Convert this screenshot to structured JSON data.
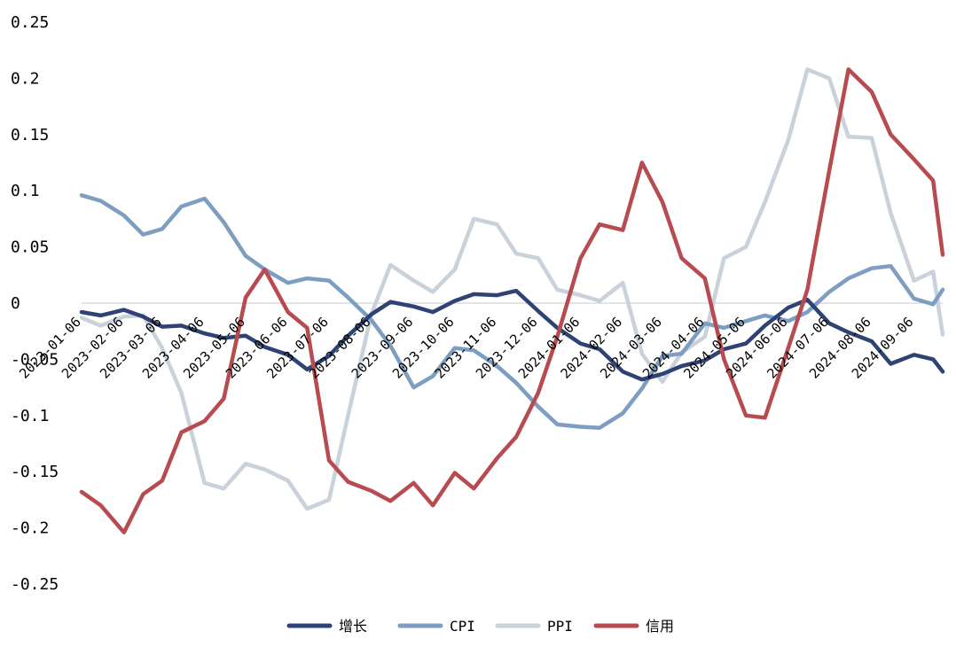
{
  "colors": {
    "增长": "#2e4373",
    "CPI": "#7d9ec0",
    "PPI": "#c9d1da",
    "信用": "#b74b50",
    "zero_line": "#c8c8c8"
  },
  "chart_data": {
    "type": "line",
    "title": "",
    "xlabel": "",
    "ylabel": "",
    "ylim": [
      -0.25,
      0.25
    ],
    "yticks": [
      0.25,
      0.2,
      0.15,
      0.1,
      0.05,
      0,
      -0.05,
      -0.1,
      -0.15,
      -0.2,
      -0.25
    ],
    "ytick_labels": [
      "0.25",
      "0.2",
      "0.15",
      "0.1",
      "0.05",
      "0",
      "-0.05",
      "-0.1",
      "-0.15",
      "-0.2",
      "-0.25"
    ],
    "xticks": [
      "2023-01-06",
      "2023-02-06",
      "2023-03-06",
      "2023-04-06",
      "2023-05-06",
      "2023-06-06",
      "2023-07-06",
      "2023-08-06",
      "2023-09-06",
      "2023-10-06",
      "2023-11-06",
      "2023-12-06",
      "2024-01-06",
      "2024-02-06",
      "2024-03-06",
      "2024-04-06",
      "2024-05-06",
      "2024-06-06",
      "2024-07-06",
      "2024-08-06",
      "2024-09-06"
    ],
    "grid": false,
    "legend_position": "bottom",
    "legend": [
      "增长",
      "CPI",
      "PPI",
      "信用"
    ],
    "series": [
      {
        "name": "增长",
        "x": [
          "2023-01-06",
          "2023-01-20",
          "2023-02-06",
          "2023-02-20",
          "2023-03-06",
          "2023-03-20",
          "2023-04-06",
          "2023-04-20",
          "2023-05-06",
          "2023-05-20",
          "2023-06-06",
          "2023-06-20",
          "2023-07-06",
          "2023-07-20",
          "2023-08-06",
          "2023-08-20",
          "2023-09-06",
          "2023-09-20",
          "2023-10-06",
          "2023-10-20",
          "2023-11-06",
          "2023-11-20",
          "2023-12-06",
          "2023-12-20",
          "2024-01-06",
          "2024-01-20",
          "2024-02-06",
          "2024-02-20",
          "2024-03-06",
          "2024-03-20",
          "2024-04-06",
          "2024-04-20",
          "2024-05-06",
          "2024-05-20",
          "2024-06-06",
          "2024-06-20",
          "2024-07-06",
          "2024-07-20",
          "2024-08-06",
          "2024-08-20",
          "2024-09-06",
          "2024-09-20",
          "2024-09-27"
        ],
        "values": [
          -0.008,
          -0.011,
          -0.006,
          -0.012,
          -0.021,
          -0.02,
          -0.027,
          -0.031,
          -0.029,
          -0.039,
          -0.046,
          -0.059,
          -0.047,
          -0.029,
          -0.01,
          0.001,
          -0.003,
          -0.008,
          0.002,
          0.008,
          0.007,
          0.011,
          -0.007,
          -0.022,
          -0.036,
          -0.041,
          -0.061,
          -0.068,
          -0.063,
          -0.056,
          -0.051,
          -0.041,
          -0.036,
          -0.02,
          -0.004,
          0.003,
          -0.018,
          -0.026,
          -0.034,
          -0.054,
          -0.046,
          -0.05,
          -0.061
        ]
      },
      {
        "name": "CPI",
        "x": [
          "2023-01-06",
          "2023-01-20",
          "2023-02-06",
          "2023-02-20",
          "2023-03-06",
          "2023-03-20",
          "2023-04-06",
          "2023-04-20",
          "2023-05-06",
          "2023-05-20",
          "2023-06-06",
          "2023-06-20",
          "2023-07-06",
          "2023-07-20",
          "2023-08-06",
          "2023-08-20",
          "2023-09-06",
          "2023-09-20",
          "2023-10-06",
          "2023-10-20",
          "2023-11-06",
          "2023-11-20",
          "2023-12-06",
          "2023-12-20",
          "2024-01-06",
          "2024-01-20",
          "2024-02-06",
          "2024-02-20",
          "2024-03-06",
          "2024-03-20",
          "2024-04-06",
          "2024-04-20",
          "2024-05-06",
          "2024-05-20",
          "2024-06-06",
          "2024-06-20",
          "2024-07-06",
          "2024-07-20",
          "2024-08-06",
          "2024-08-20",
          "2024-09-06",
          "2024-09-20",
          "2024-09-27"
        ],
        "values": [
          0.096,
          0.091,
          0.078,
          0.061,
          0.066,
          0.086,
          0.093,
          0.072,
          0.042,
          0.03,
          0.018,
          0.022,
          0.02,
          0.005,
          -0.015,
          -0.038,
          -0.075,
          -0.065,
          -0.04,
          -0.042,
          -0.056,
          -0.071,
          -0.092,
          -0.108,
          -0.11,
          -0.111,
          -0.098,
          -0.076,
          -0.047,
          -0.045,
          -0.018,
          -0.022,
          -0.016,
          -0.011,
          -0.016,
          -0.008,
          0.01,
          0.022,
          0.031,
          0.033,
          0.004,
          -0.001,
          0.012
        ]
      },
      {
        "name": "PPI",
        "x": [
          "2023-01-06",
          "2023-01-20",
          "2023-02-06",
          "2023-02-20",
          "2023-03-06",
          "2023-03-20",
          "2023-04-06",
          "2023-04-20",
          "2023-05-06",
          "2023-05-20",
          "2023-06-06",
          "2023-06-20",
          "2023-07-06",
          "2023-07-20",
          "2023-08-06",
          "2023-08-20",
          "2023-09-06",
          "2023-09-20",
          "2023-10-06",
          "2023-10-20",
          "2023-11-06",
          "2023-11-20",
          "2023-12-06",
          "2023-12-20",
          "2024-01-06",
          "2024-01-20",
          "2024-02-06",
          "2024-02-20",
          "2024-03-06",
          "2024-03-20",
          "2024-04-06",
          "2024-04-20",
          "2024-05-06",
          "2024-05-20",
          "2024-06-06",
          "2024-06-20",
          "2024-07-06",
          "2024-07-20",
          "2024-08-06",
          "2024-08-20",
          "2024-09-06",
          "2024-09-20",
          "2024-09-27"
        ],
        "values": [
          -0.013,
          -0.02,
          -0.012,
          -0.011,
          -0.04,
          -0.08,
          -0.16,
          -0.165,
          -0.143,
          -0.148,
          -0.158,
          -0.183,
          -0.175,
          -0.1,
          -0.01,
          0.034,
          0.02,
          0.01,
          0.03,
          0.075,
          0.07,
          0.044,
          0.04,
          0.012,
          0.007,
          0.002,
          0.018,
          -0.045,
          -0.07,
          -0.044,
          -0.03,
          0.04,
          0.05,
          0.09,
          0.145,
          0.208,
          0.2,
          0.148,
          0.147,
          0.08,
          0.02,
          0.028,
          -0.028
        ]
      },
      {
        "name": "信用",
        "x": [
          "2023-01-06",
          "2023-01-20",
          "2023-02-06",
          "2023-02-20",
          "2023-03-06",
          "2023-03-20",
          "2023-04-06",
          "2023-04-20",
          "2023-05-06",
          "2023-05-20",
          "2023-06-06",
          "2023-06-20",
          "2023-07-06",
          "2023-07-20",
          "2023-08-06",
          "2023-08-20",
          "2023-09-06",
          "2023-09-20",
          "2023-10-06",
          "2023-10-20",
          "2023-11-06",
          "2023-11-20",
          "2023-12-06",
          "2023-12-20",
          "2024-01-06",
          "2024-01-20",
          "2024-02-06",
          "2024-02-20",
          "2024-03-06",
          "2024-03-20",
          "2024-04-06",
          "2024-04-20",
          "2024-05-06",
          "2024-05-20",
          "2024-06-06",
          "2024-06-20",
          "2024-07-06",
          "2024-07-20",
          "2024-08-06",
          "2024-08-20",
          "2024-09-06",
          "2024-09-20",
          "2024-09-27"
        ],
        "values": [
          -0.168,
          -0.18,
          -0.204,
          -0.17,
          -0.158,
          -0.115,
          -0.105,
          -0.085,
          0.005,
          0.03,
          -0.008,
          -0.022,
          -0.14,
          -0.159,
          -0.167,
          -0.176,
          -0.16,
          -0.18,
          -0.151,
          -0.165,
          -0.138,
          -0.119,
          -0.08,
          -0.03,
          0.04,
          0.07,
          0.065,
          0.125,
          0.09,
          0.04,
          0.022,
          -0.05,
          -0.1,
          -0.102,
          -0.04,
          0.012,
          0.118,
          0.208,
          0.188,
          0.15,
          0.128,
          0.109,
          0.043
        ]
      }
    ]
  }
}
